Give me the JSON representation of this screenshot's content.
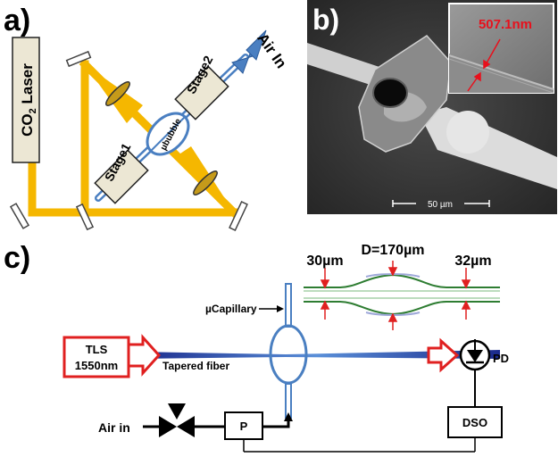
{
  "panel_a": {
    "label": "a)",
    "laser_label": "CO",
    "laser_subscript": "2",
    "laser_suffix": " Laser",
    "stage1_label": "Stage1",
    "stage2_label": "Stage2",
    "bubble_label": "µbubble",
    "air_in_label": "Air In"
  },
  "panel_b": {
    "label": "b)",
    "inset_measurement": "507.1nm",
    "scale_bar_label": "50 µm"
  },
  "panel_c": {
    "label": "c)",
    "tls_line1": "TLS",
    "tls_line2": "1550nm",
    "capillary_label": "µCapillary",
    "tapered_fiber_label": "Tapered fiber",
    "pd_label": "PD",
    "dso_label": "DSO",
    "p_label": "P",
    "air_in_label": "Air in",
    "dim_left": "30µm",
    "dim_center": "D=170µm",
    "dim_right": "32µm"
  },
  "colors": {
    "beam": "#f5b700",
    "box_fill": "#ece7d4",
    "fiber_blue": "#4a7fc1",
    "arrow_red": "#e02020",
    "inset_red": "#e8101c"
  }
}
